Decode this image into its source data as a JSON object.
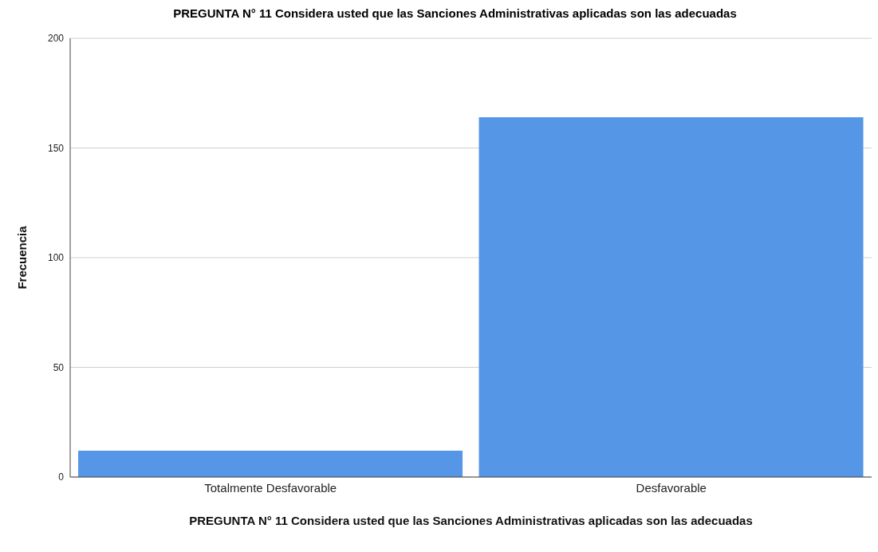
{
  "chart_data": {
    "type": "bar",
    "title": "PREGUNTA N° 11 Considera usted que las Sanciones Administrativas aplicadas son las adecuadas",
    "xlabel": "PREGUNTA N° 11 Considera usted que las Sanciones Administrativas aplicadas son las adecuadas",
    "ylabel": "Frecuencia",
    "categories": [
      "Totalmente Desfavorable",
      "Desfavorable"
    ],
    "values": [
      12,
      164
    ],
    "color": "#5596e6",
    "ylim": [
      0,
      200
    ],
    "yticks": [
      0,
      50,
      100,
      150,
      200
    ],
    "grid": "y"
  }
}
